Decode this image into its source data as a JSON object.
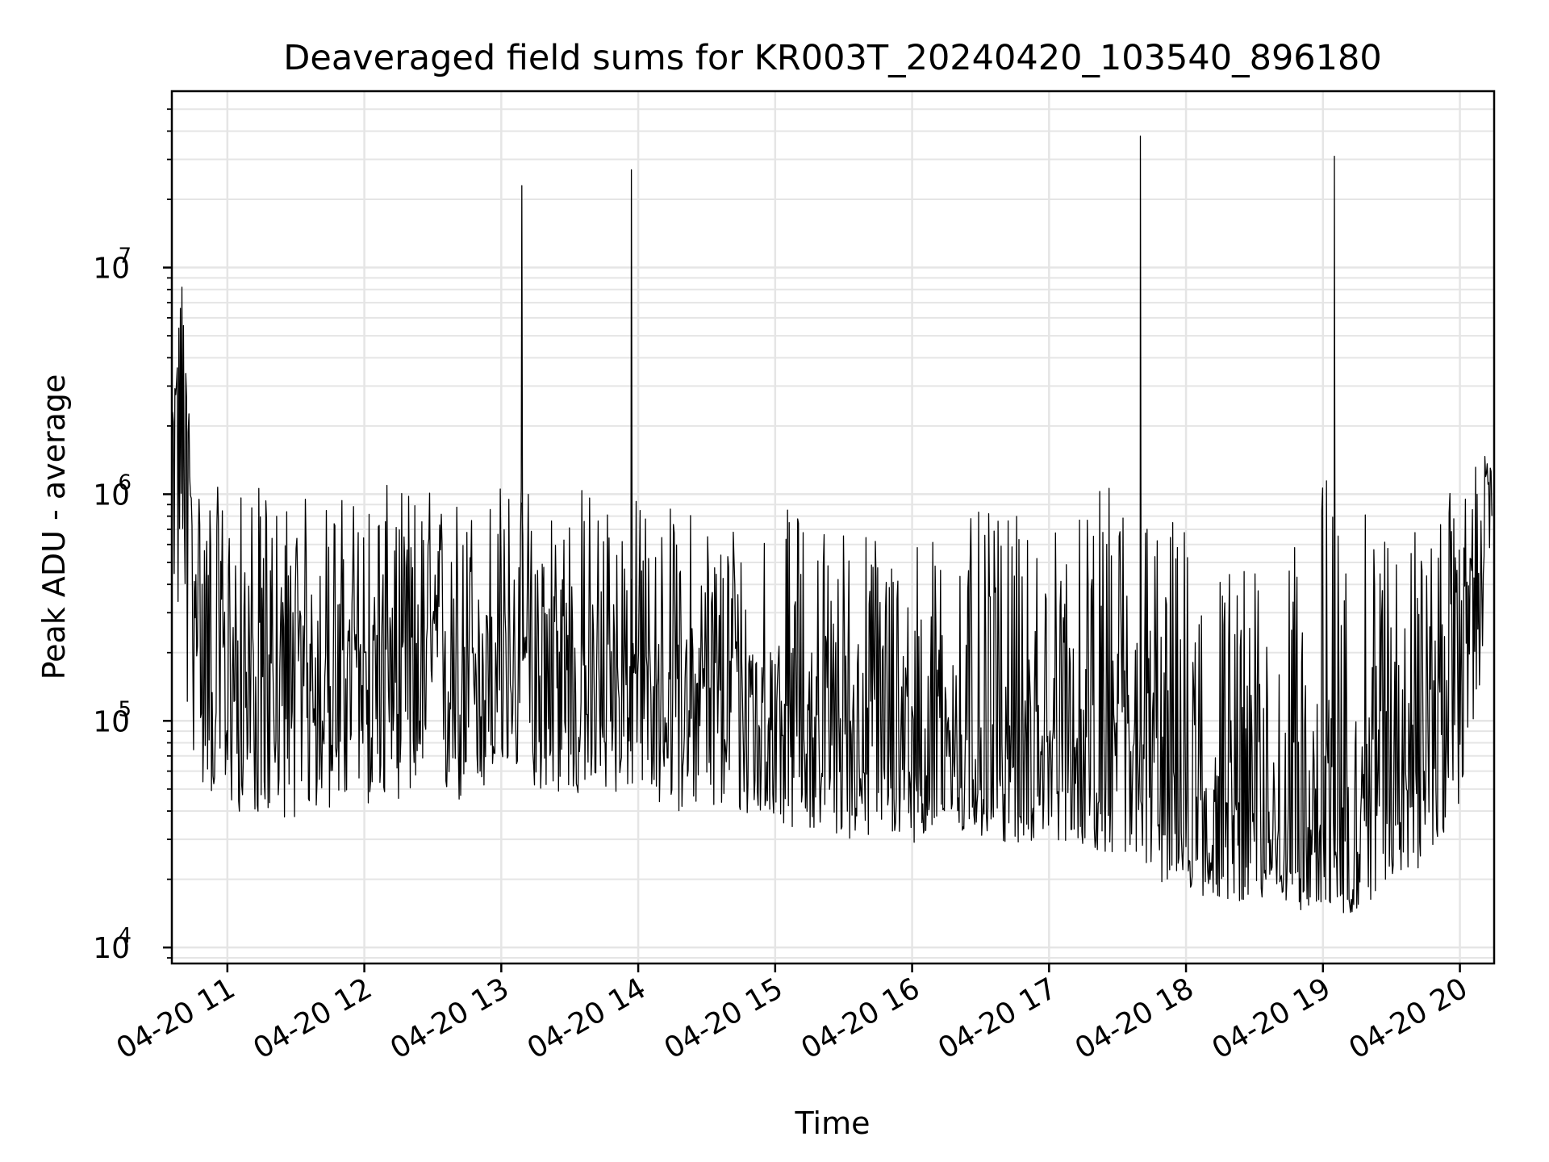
{
  "chart_data": {
    "type": "line",
    "title": "Deaveraged field sums for KR003T_20240420_103540_896180",
    "xlabel": "Time",
    "ylabel": "Peak ADU - average",
    "yscale": "log",
    "ylim": [
      8500,
      60000000
    ],
    "xlim": [
      "04-20 10:35:40",
      "04-20 20:15:00"
    ],
    "grid": "both, light gray major and minor",
    "x_ticks": [
      "04-20 11",
      "04-20 12",
      "04-20 13",
      "04-20 14",
      "04-20 15",
      "04-20 16",
      "04-20 17",
      "04-20 18",
      "04-20 19",
      "04-20 20"
    ],
    "y_ticks": [
      {
        "base": "10",
        "exp": "4",
        "value": 10000
      },
      {
        "base": "10",
        "exp": "5",
        "value": 100000
      },
      {
        "base": "10",
        "exp": "6",
        "value": 1000000
      },
      {
        "base": "10",
        "exp": "7",
        "value": 10000000
      }
    ],
    "colors": {
      "line": "#000000",
      "grid": "#e5e5e5",
      "frame": "#000000"
    },
    "series": [
      {
        "x": [
          "04-20 10:36",
          "04-20 10:40",
          "04-20 10:45",
          "04-20 10:50",
          "04-20 11:00",
          "04-20 11:15",
          "04-20 11:30",
          "04-20 11:45",
          "04-20 12:00",
          "04-20 12:15",
          "04-20 12:30",
          "04-20 12:45",
          "04-20 13:00",
          "04-20 13:09",
          "04-20 13:15",
          "04-20 13:30",
          "04-20 13:45",
          "04-20 13:57",
          "04-20 14:00",
          "04-20 14:15",
          "04-20 14:30",
          "04-20 14:45",
          "04-20 15:00",
          "04-20 15:15",
          "04-20 15:30",
          "04-20 15:45",
          "04-20 16:00",
          "04-20 16:15",
          "04-20 16:30",
          "04-20 16:45",
          "04-20 17:00",
          "04-20 17:15",
          "04-20 17:30",
          "04-20 17:40",
          "04-20 17:50",
          "04-20 18:00",
          "04-20 18:15",
          "04-20 18:30",
          "04-20 18:45",
          "04-20 19:00",
          "04-20 19:05",
          "04-20 19:15",
          "04-20 19:30",
          "04-20 19:45",
          "04-20 20:00",
          "04-20 20:14"
        ],
        "y": [
          1400000,
          8500000,
          500000,
          300000,
          180000,
          150000,
          170000,
          190000,
          200000,
          210000,
          220000,
          200000,
          190000,
          23000000,
          180000,
          170000,
          170000,
          27000000,
          160000,
          150000,
          140000,
          130000,
          120000,
          110000,
          100000,
          95000,
          90000,
          85000,
          80000,
          78000,
          80000,
          75000,
          70000,
          38000000,
          60000,
          45000,
          40000,
          35000,
          32000,
          32000,
          31000000,
          40000,
          130000,
          110000,
          250000,
          1300000
        ],
        "low": [
          500000,
          120000,
          70000,
          48000,
          40000,
          38000,
          37000,
          40000,
          42000,
          45000,
          45000,
          40000,
          55000,
          60000,
          50000,
          45000,
          45000,
          50000,
          45000,
          40000,
          40000,
          37000,
          35000,
          33000,
          30000,
          30000,
          29000,
          30000,
          30000,
          28000,
          30000,
          28000,
          25000,
          22000,
          19000,
          17000,
          16000,
          16000,
          15000,
          14000,
          13000,
          14000,
          20000,
          22000,
          40000,
          300000
        ],
        "high": [
          2300000,
          8500000,
          1300000,
          1200000,
          1000000,
          1100000,
          1000000,
          1000000,
          1100000,
          1100000,
          1100000,
          1000000,
          1200000,
          23000000,
          1200000,
          1200000,
          1100000,
          27000000,
          1000000,
          900000,
          900000,
          900000,
          900000,
          850000,
          800000,
          750000,
          700000,
          700000,
          850000,
          800000,
          800000,
          800000,
          1400000,
          38000000,
          900000,
          800000,
          600000,
          500000,
          500000,
          1500000,
          31000000,
          800000,
          900000,
          700000,
          1200000,
          1600000
        ]
      }
    ]
  }
}
